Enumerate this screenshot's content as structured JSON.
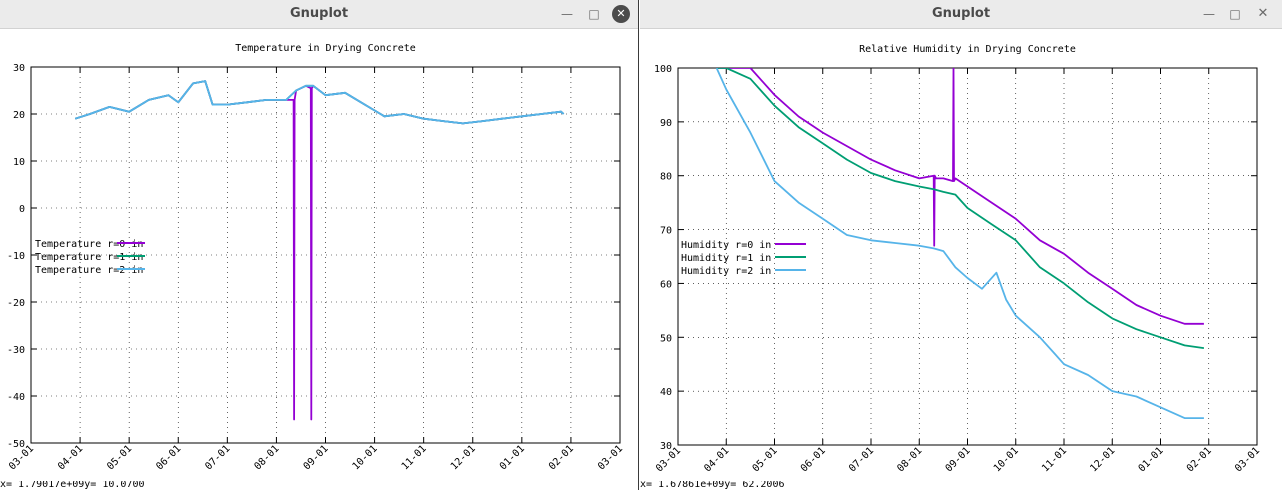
{
  "windows": [
    {
      "title": "Gnuplot",
      "status_text": "x=  1.79017e+09y=    10.0700",
      "chart_data": {
        "type": "line",
        "title": "Temperature in Drying Concrete",
        "xlabel": "",
        "ylabel": "",
        "x_tick_labels": [
          "03-01",
          "04-01",
          "05-01",
          "06-01",
          "07-01",
          "08-01",
          "09-01",
          "10-01",
          "11-01",
          "12-01",
          "01-01",
          "02-01",
          "03-01"
        ],
        "y_ticks": [
          30,
          20,
          10,
          0,
          -10,
          -20,
          -30,
          -40,
          -50
        ],
        "ylim": [
          -50,
          30
        ],
        "xlim_months": [
          0,
          12
        ],
        "grid": true,
        "legend_position": "left-middle",
        "series": [
          {
            "name": "Temperature r=0 in",
            "color": "#9400d3",
            "x": [
              0.9,
              1.2,
              1.6,
              2.0,
              2.4,
              2.8,
              3.0,
              3.3,
              3.55,
              3.7,
              4.0,
              4.4,
              4.8,
              5.2,
              5.35,
              5.36,
              5.37,
              5.4,
              5.6,
              5.7,
              5.71,
              5.72,
              5.75,
              6.0,
              6.4,
              6.8,
              7.2,
              7.6,
              8.0,
              8.4,
              8.8,
              9.2,
              9.6,
              10.0,
              10.4,
              10.8,
              10.85
            ],
            "y": [
              19,
              20,
              21.5,
              20.5,
              23,
              24,
              22.5,
              26.5,
              27,
              22,
              22,
              22.5,
              23,
              23,
              23,
              -45,
              23,
              25,
              26,
              25.5,
              -45,
              25.5,
              26,
              24,
              24.5,
              22,
              19.5,
              20,
              19,
              18.5,
              18,
              18.5,
              19,
              19.5,
              20,
              20.5,
              20
            ]
          },
          {
            "name": "Temperature r=1 in",
            "color": "#009e73",
            "x": [
              0.9,
              1.2,
              1.6,
              2.0,
              2.4,
              2.8,
              3.0,
              3.3,
              3.55,
              3.7,
              4.0,
              4.4,
              4.8,
              5.2,
              5.4,
              5.6,
              5.75,
              6.0,
              6.4,
              6.8,
              7.2,
              7.6,
              8.0,
              8.4,
              8.8,
              9.2,
              9.6,
              10.0,
              10.4,
              10.8,
              10.85
            ],
            "y": [
              19,
              20,
              21.5,
              20.5,
              23,
              24,
              22.5,
              26.5,
              27,
              22,
              22,
              22.5,
              23,
              23,
              25,
              26,
              26,
              24,
              24.5,
              22,
              19.5,
              20,
              19,
              18.5,
              18,
              18.5,
              19,
              19.5,
              20,
              20.5,
              20
            ]
          },
          {
            "name": "Temperature r=2 in",
            "color": "#56b4e9",
            "x": [
              0.9,
              1.2,
              1.6,
              2.0,
              2.4,
              2.8,
              3.0,
              3.3,
              3.55,
              3.7,
              4.0,
              4.4,
              4.8,
              5.2,
              5.4,
              5.6,
              5.75,
              6.0,
              6.4,
              6.8,
              7.2,
              7.6,
              8.0,
              8.4,
              8.8,
              9.2,
              9.6,
              10.0,
              10.4,
              10.8,
              10.85
            ],
            "y": [
              19,
              20,
              21.5,
              20.5,
              23,
              24,
              22.5,
              26.5,
              27,
              22,
              22,
              22.5,
              23,
              23,
              25,
              26,
              26,
              24,
              24.5,
              22,
              19.5,
              20,
              19,
              18.5,
              18,
              18.5,
              19,
              19.5,
              20,
              20.5,
              20
            ]
          }
        ]
      }
    },
    {
      "title": "Gnuplot",
      "status_text": "x=  1.67861e+09y=    62.2006",
      "chart_data": {
        "type": "line",
        "title": "Relative Humidity in Drying Concrete",
        "xlabel": "",
        "ylabel": "",
        "x_tick_labels": [
          "03-01",
          "04-01",
          "05-01",
          "06-01",
          "07-01",
          "08-01",
          "09-01",
          "10-01",
          "11-01",
          "12-01",
          "01-01",
          "02-01",
          "03-01"
        ],
        "y_ticks": [
          100,
          90,
          80,
          70,
          60,
          50,
          40,
          30
        ],
        "ylim": [
          30,
          100
        ],
        "xlim_months": [
          0,
          12
        ],
        "grid": true,
        "legend_position": "left-middle",
        "series": [
          {
            "name": "Humidity r=0 in",
            "color": "#9400d3",
            "x": [
              0.8,
              1.0,
              1.5,
              2.0,
              2.5,
              3.0,
              3.5,
              4.0,
              4.5,
              5.0,
              5.3,
              5.31,
              5.32,
              5.35,
              5.5,
              5.7,
              5.71,
              5.72,
              5.75,
              6.0,
              6.5,
              7.0,
              7.5,
              8.0,
              8.5,
              9.0,
              9.5,
              10.0,
              10.5,
              10.9
            ],
            "y": [
              100,
              100,
              100,
              95,
              91,
              88,
              85.5,
              83,
              81,
              79.5,
              80,
              67,
              80,
              79.5,
              79.5,
              79,
              100,
              79,
              79.5,
              78,
              75,
              72,
              68,
              65.5,
              62,
              59,
              56,
              54,
              52.5,
              52.5
            ]
          },
          {
            "name": "Humidity r=1 in",
            "color": "#009e73",
            "x": [
              0.8,
              1.0,
              1.5,
              2.0,
              2.5,
              3.0,
              3.5,
              4.0,
              4.5,
              5.0,
              5.3,
              5.5,
              5.75,
              6.0,
              6.5,
              7.0,
              7.5,
              8.0,
              8.5,
              9.0,
              9.5,
              10.0,
              10.5,
              10.9
            ],
            "y": [
              100,
              100,
              98,
              93,
              89,
              86,
              83,
              80.5,
              79,
              78,
              77.5,
              77,
              76.5,
              74,
              71,
              68,
              63,
              60,
              56.5,
              53.5,
              51.5,
              50,
              48.5,
              48
            ]
          },
          {
            "name": "Humidity r=2 in",
            "color": "#56b4e9",
            "x": [
              0.8,
              1.0,
              1.5,
              2.0,
              2.5,
              3.0,
              3.5,
              4.0,
              4.5,
              5.0,
              5.3,
              5.5,
              5.75,
              6.0,
              6.3,
              6.6,
              6.8,
              7.0,
              7.5,
              7.8,
              8.0,
              8.5,
              9.0,
              9.5,
              10.0,
              10.5,
              10.9
            ],
            "y": [
              100,
              96,
              88,
              79,
              75,
              72,
              69,
              68,
              67.5,
              67,
              66.5,
              66,
              63,
              61,
              59,
              62,
              57,
              54,
              50,
              47,
              45,
              43,
              40,
              39,
              37,
              35,
              35
            ]
          }
        ]
      }
    }
  ]
}
